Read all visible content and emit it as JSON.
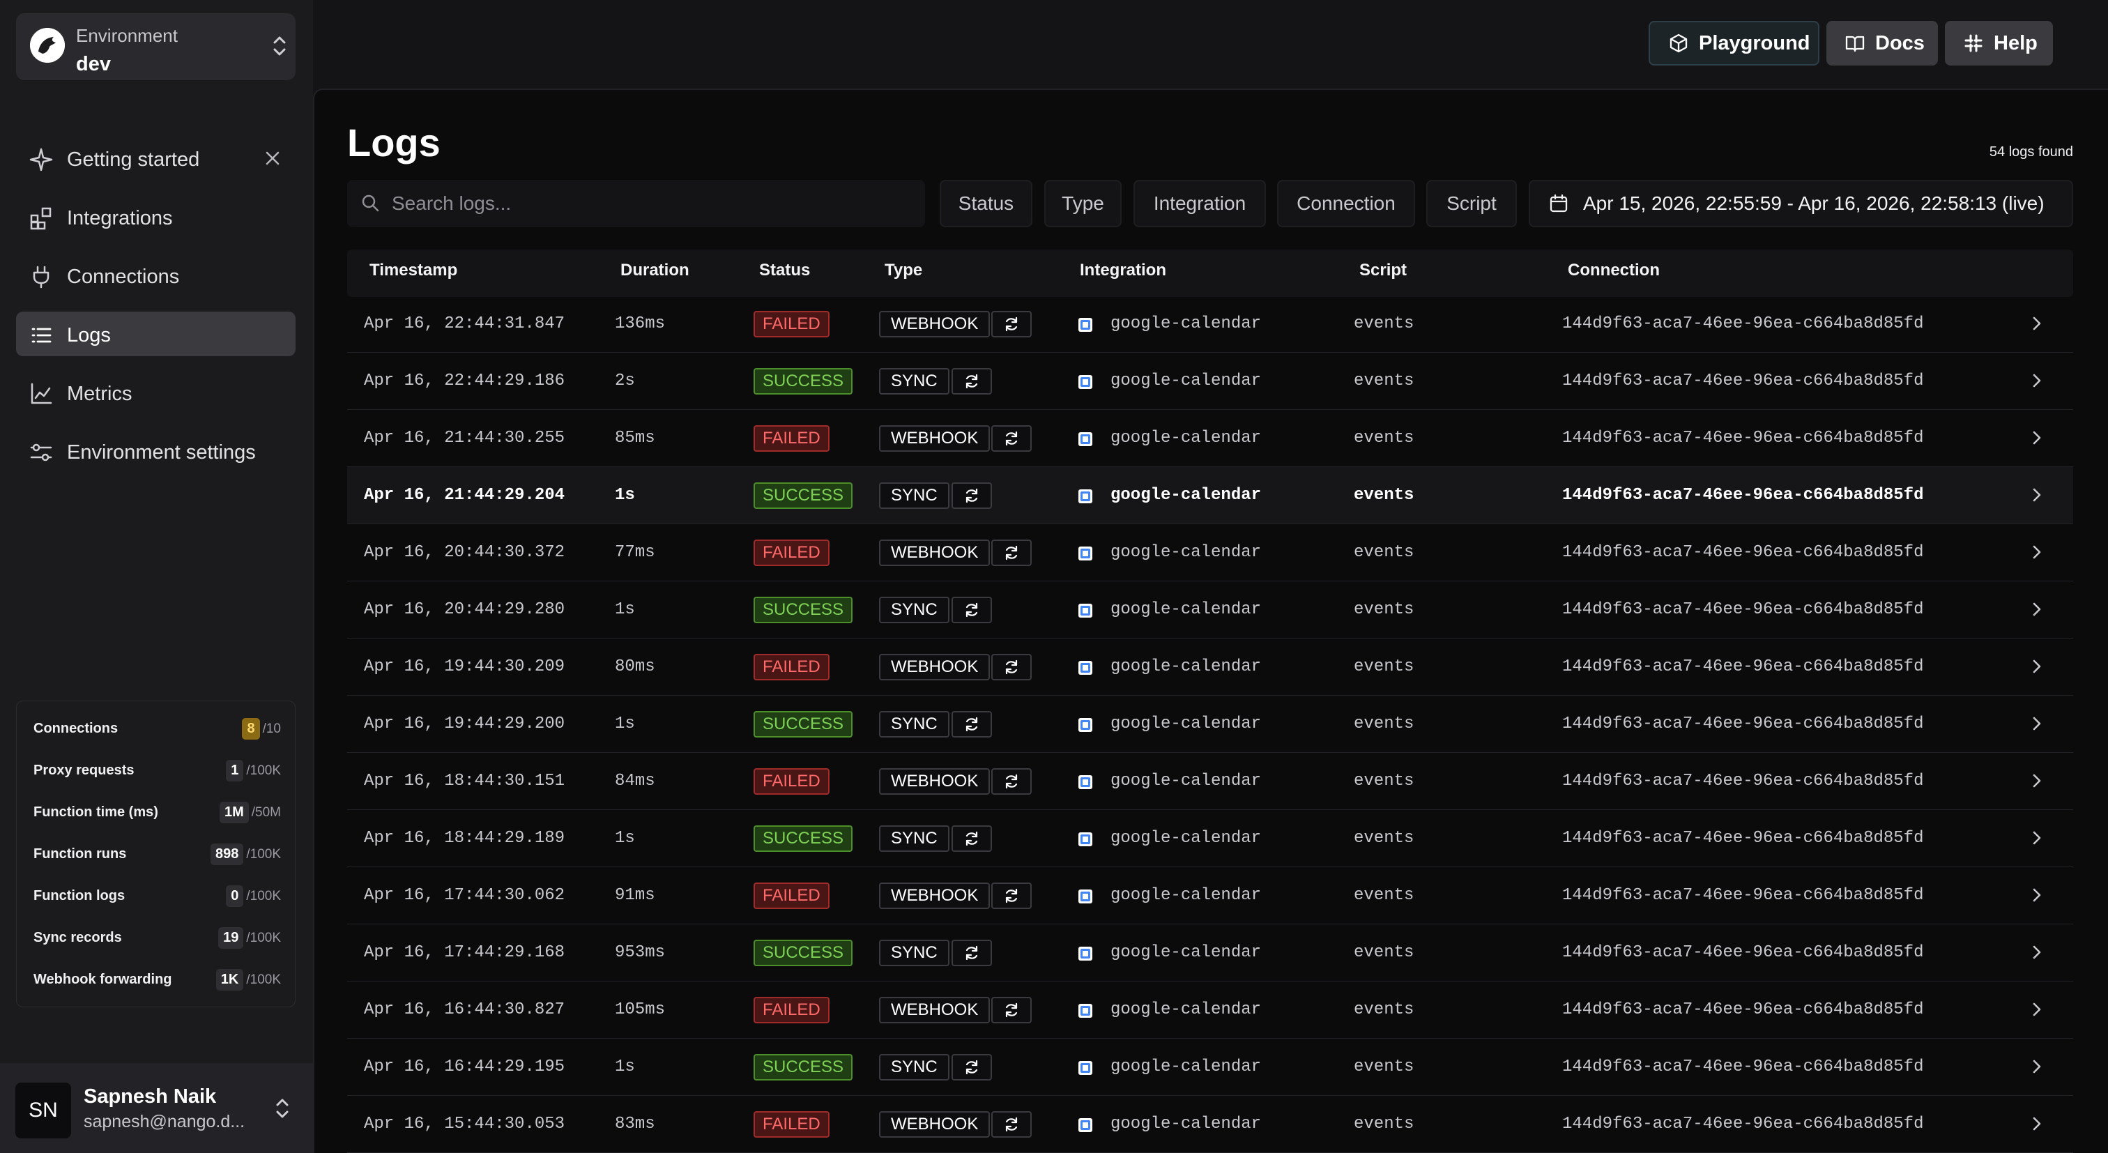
{
  "sidebar": {
    "env_label": "Environment",
    "env_value": "dev",
    "nav": [
      {
        "label": "Getting started",
        "icon": "sparkle-icon"
      },
      {
        "label": "Integrations",
        "icon": "integrations-icon"
      },
      {
        "label": "Connections",
        "icon": "plug-icon"
      },
      {
        "label": "Logs",
        "icon": "list-icon",
        "active": true
      },
      {
        "label": "Metrics",
        "icon": "chart-icon"
      },
      {
        "label": "Environment settings",
        "icon": "settings-sliders-icon"
      }
    ],
    "usage": [
      {
        "name": "Connections",
        "count": "8",
        "max": "/10",
        "warn": true
      },
      {
        "name": "Proxy requests",
        "count": "1",
        "max": "/100K"
      },
      {
        "name": "Function time (ms)",
        "count": "1M",
        "max": "/50M"
      },
      {
        "name": "Function runs",
        "count": "898",
        "max": "/100K"
      },
      {
        "name": "Function logs",
        "count": "0",
        "max": "/100K"
      },
      {
        "name": "Sync records",
        "count": "19",
        "max": "/100K"
      },
      {
        "name": "Webhook forwarding",
        "count": "1K",
        "max": "/100K"
      }
    ],
    "user": {
      "initials": "SN",
      "name": "Sapnesh Naik",
      "email": "sapnesh@nango.d..."
    }
  },
  "topbar": {
    "playground": "Playground",
    "docs": "Docs",
    "help": "Help"
  },
  "page": {
    "title": "Logs",
    "count_text": "54 logs found",
    "search_placeholder": "Search logs...",
    "filters": [
      "Status",
      "Type",
      "Integration",
      "Connection",
      "Script"
    ],
    "date_range": "Apr 15, 2026, 22:55:59 - Apr 16, 2026, 22:58:13 (live)"
  },
  "table": {
    "headers": [
      "Timestamp",
      "Duration",
      "Status",
      "Type",
      "Integration",
      "Script",
      "Connection"
    ],
    "rows": [
      {
        "ts": "Apr 16, 22:44:31.847",
        "dur": "136ms",
        "status": "FAILED",
        "type": "WEBHOOK",
        "integration": "google-calendar",
        "script": "events",
        "connection": "144d9f63-aca7-46ee-96ea-c664ba8d85fd"
      },
      {
        "ts": "Apr 16, 22:44:29.186",
        "dur": "2s",
        "status": "SUCCESS",
        "type": "SYNC",
        "integration": "google-calendar",
        "script": "events",
        "connection": "144d9f63-aca7-46ee-96ea-c664ba8d85fd"
      },
      {
        "ts": "Apr 16, 21:44:30.255",
        "dur": "85ms",
        "status": "FAILED",
        "type": "WEBHOOK",
        "integration": "google-calendar",
        "script": "events",
        "connection": "144d9f63-aca7-46ee-96ea-c664ba8d85fd"
      },
      {
        "ts": "Apr 16, 21:44:29.204",
        "dur": "1s",
        "status": "SUCCESS",
        "type": "SYNC",
        "integration": "google-calendar",
        "script": "events",
        "connection": "144d9f63-aca7-46ee-96ea-c664ba8d85fd",
        "highlight": true
      },
      {
        "ts": "Apr 16, 20:44:30.372",
        "dur": "77ms",
        "status": "FAILED",
        "type": "WEBHOOK",
        "integration": "google-calendar",
        "script": "events",
        "connection": "144d9f63-aca7-46ee-96ea-c664ba8d85fd"
      },
      {
        "ts": "Apr 16, 20:44:29.280",
        "dur": "1s",
        "status": "SUCCESS",
        "type": "SYNC",
        "integration": "google-calendar",
        "script": "events",
        "connection": "144d9f63-aca7-46ee-96ea-c664ba8d85fd"
      },
      {
        "ts": "Apr 16, 19:44:30.209",
        "dur": "80ms",
        "status": "FAILED",
        "type": "WEBHOOK",
        "integration": "google-calendar",
        "script": "events",
        "connection": "144d9f63-aca7-46ee-96ea-c664ba8d85fd"
      },
      {
        "ts": "Apr 16, 19:44:29.200",
        "dur": "1s",
        "status": "SUCCESS",
        "type": "SYNC",
        "integration": "google-calendar",
        "script": "events",
        "connection": "144d9f63-aca7-46ee-96ea-c664ba8d85fd"
      },
      {
        "ts": "Apr 16, 18:44:30.151",
        "dur": "84ms",
        "status": "FAILED",
        "type": "WEBHOOK",
        "integration": "google-calendar",
        "script": "events",
        "connection": "144d9f63-aca7-46ee-96ea-c664ba8d85fd"
      },
      {
        "ts": "Apr 16, 18:44:29.189",
        "dur": "1s",
        "status": "SUCCESS",
        "type": "SYNC",
        "integration": "google-calendar",
        "script": "events",
        "connection": "144d9f63-aca7-46ee-96ea-c664ba8d85fd"
      },
      {
        "ts": "Apr 16, 17:44:30.062",
        "dur": "91ms",
        "status": "FAILED",
        "type": "WEBHOOK",
        "integration": "google-calendar",
        "script": "events",
        "connection": "144d9f63-aca7-46ee-96ea-c664ba8d85fd"
      },
      {
        "ts": "Apr 16, 17:44:29.168",
        "dur": "953ms",
        "status": "SUCCESS",
        "type": "SYNC",
        "integration": "google-calendar",
        "script": "events",
        "connection": "144d9f63-aca7-46ee-96ea-c664ba8d85fd"
      },
      {
        "ts": "Apr 16, 16:44:30.827",
        "dur": "105ms",
        "status": "FAILED",
        "type": "WEBHOOK",
        "integration": "google-calendar",
        "script": "events",
        "connection": "144d9f63-aca7-46ee-96ea-c664ba8d85fd"
      },
      {
        "ts": "Apr 16, 16:44:29.195",
        "dur": "1s",
        "status": "SUCCESS",
        "type": "SYNC",
        "integration": "google-calendar",
        "script": "events",
        "connection": "144d9f63-aca7-46ee-96ea-c664ba8d85fd"
      },
      {
        "ts": "Apr 16, 15:44:30.053",
        "dur": "83ms",
        "status": "FAILED",
        "type": "WEBHOOK",
        "integration": "google-calendar",
        "script": "events",
        "connection": "144d9f63-aca7-46ee-96ea-c664ba8d85fd"
      }
    ]
  },
  "colors": {
    "failed": "#ff6b6b",
    "success": "#7fd257",
    "warn": "#ffd972",
    "background": "#0b0b0c"
  }
}
